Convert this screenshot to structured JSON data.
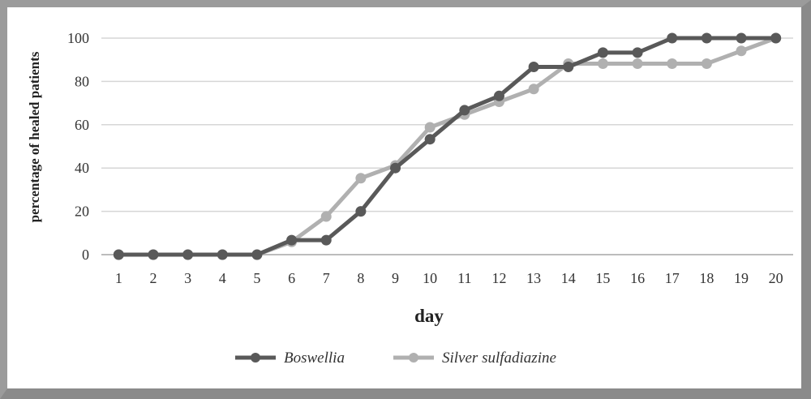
{
  "chart_data": {
    "type": "line",
    "x": [
      1,
      2,
      3,
      4,
      5,
      6,
      7,
      8,
      9,
      10,
      11,
      12,
      13,
      14,
      15,
      16,
      17,
      18,
      19,
      20
    ],
    "xlabel": "day",
    "ylabel": "percentage of healed patients",
    "ylim": [
      0,
      100
    ],
    "yticks": [
      0,
      20,
      40,
      60,
      80,
      100
    ],
    "grid": true,
    "legend_position": "bottom",
    "series": [
      {
        "name": "Boswellia",
        "color": "#595959",
        "values": [
          0,
          0,
          0,
          0,
          0,
          6.7,
          6.7,
          20,
          40,
          53.3,
          66.7,
          73.3,
          86.7,
          86.7,
          93.3,
          93.3,
          100,
          100,
          100,
          100
        ]
      },
      {
        "name": "Silver sulfadiazine",
        "color": "#b0b0b0",
        "values": [
          0,
          0,
          0,
          0,
          0,
          5.9,
          17.6,
          35.3,
          41.2,
          58.8,
          64.7,
          70.6,
          76.5,
          88.2,
          88.2,
          88.2,
          88.2,
          88.2,
          94.1,
          100
        ]
      }
    ]
  }
}
